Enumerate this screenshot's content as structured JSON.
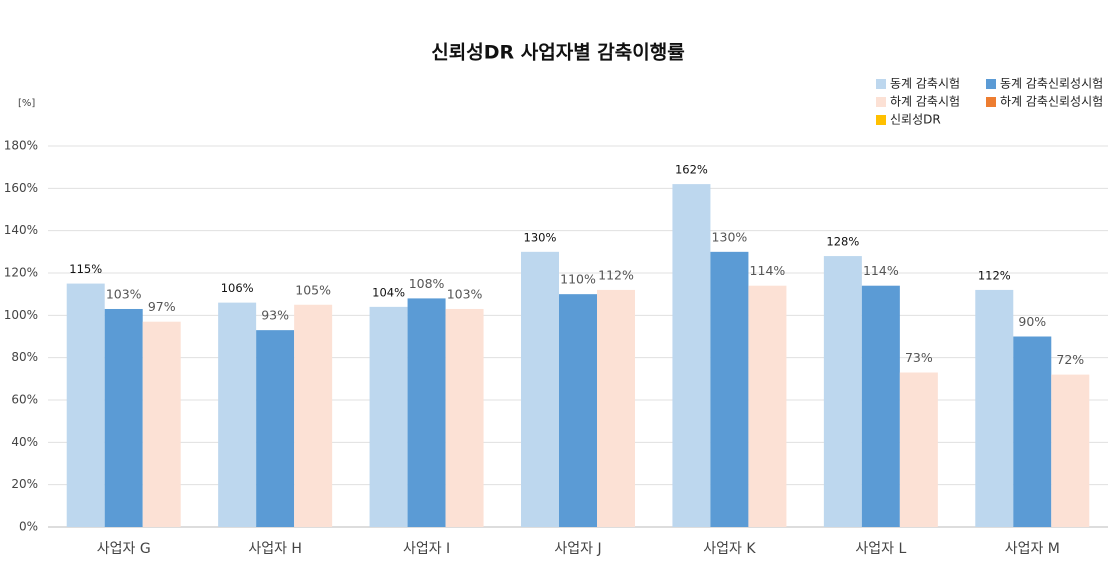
{
  "chart_data": {
    "type": "bar",
    "title": "신뢰성DR 사업자별 감축이행률",
    "y_unit_label": "[%]",
    "categories": [
      "사업자 G",
      "사업자 H",
      "사업자 I",
      "사업자 J",
      "사업자 K",
      "사업자 L",
      "사업자 M"
    ],
    "series": [
      {
        "name": "동계 감축시험",
        "color": "#bdd7ee",
        "values": [
          115,
          106,
          104,
          130,
          162,
          128,
          112
        ],
        "value_labels": [
          "115%",
          "106%",
          "104%",
          "130%",
          "162%",
          "128%",
          "112%"
        ]
      },
      {
        "name": "동계 감축신뢰성시험",
        "color": "#5b9bd5",
        "values": [
          103,
          93,
          108,
          110,
          130,
          114,
          90
        ],
        "value_labels": [
          "103%",
          "93%",
          "108%",
          "110%",
          "130%",
          "114%",
          "90%"
        ]
      },
      {
        "name": "하계 감축시험",
        "color": "#fce1d5",
        "values": [
          97,
          105,
          103,
          112,
          114,
          73,
          72
        ],
        "value_labels": [
          "97%",
          "105%",
          "103%",
          "112%",
          "114%",
          "73%",
          "72%"
        ]
      },
      {
        "name": "하계 감축신뢰성시험",
        "color": "#ed7d31",
        "values": [
          null,
          null,
          null,
          null,
          null,
          null,
          null
        ]
      },
      {
        "name": "신뢰성DR",
        "color": "#ffc000",
        "values": [
          null,
          null,
          null,
          null,
          null,
          null,
          null
        ]
      }
    ],
    "ylim": [
      0,
      180
    ],
    "yticks": [
      {
        "value": 0,
        "label": "0%"
      },
      {
        "value": 20,
        "label": "20%"
      },
      {
        "value": 40,
        "label": "40%"
      },
      {
        "value": 60,
        "label": "60%"
      },
      {
        "value": 80,
        "label": "80%"
      },
      {
        "value": 100,
        "label": "100%"
      },
      {
        "value": 120,
        "label": "120%"
      },
      {
        "value": 140,
        "label": "140%"
      },
      {
        "value": 160,
        "label": "160%"
      },
      {
        "value": 180,
        "label": "180%"
      }
    ],
    "grid": true,
    "legend": "top-right"
  }
}
